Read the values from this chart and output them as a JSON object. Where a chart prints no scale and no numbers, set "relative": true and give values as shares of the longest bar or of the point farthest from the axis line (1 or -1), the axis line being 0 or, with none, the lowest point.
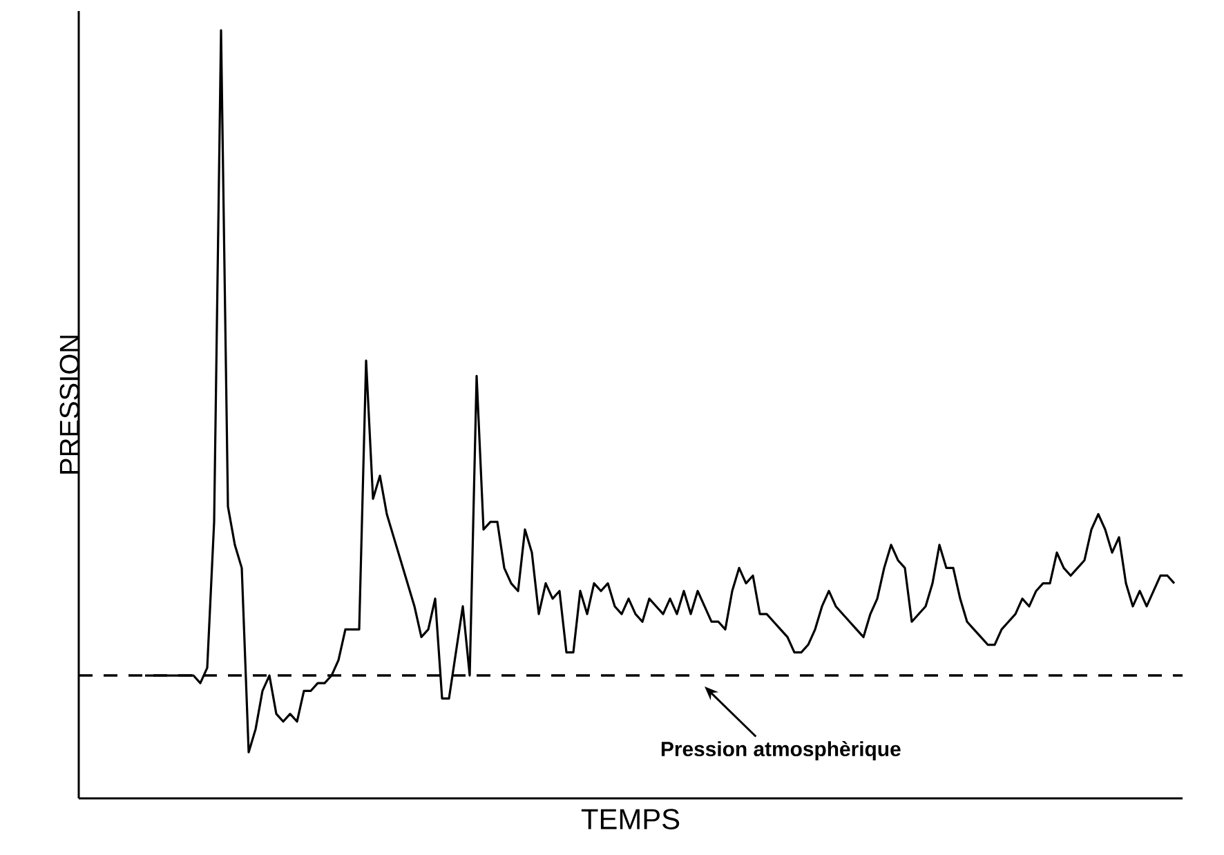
{
  "chart_data": {
    "type": "line",
    "relative": true,
    "xlabel": "TEMPS",
    "ylabel": "PRESSION",
    "categories": [
      null,
      null,
      null,
      null,
      null,
      null,
      null,
      null,
      null,
      null,
      null,
      null,
      null,
      null,
      null,
      null,
      null,
      null,
      null,
      null,
      null,
      null,
      null,
      null,
      null,
      null,
      null,
      null,
      null,
      null,
      null,
      null,
      null,
      null,
      null,
      null,
      null,
      null,
      null,
      null,
      null,
      null,
      null,
      null,
      null,
      null,
      null,
      null,
      null,
      null,
      null,
      null,
      null,
      null,
      null,
      null,
      null,
      null,
      null,
      null,
      null,
      null,
      null,
      null,
      null,
      null,
      null,
      null,
      null,
      null,
      null,
      null,
      null,
      null,
      null,
      null,
      null,
      null,
      null,
      null,
      null,
      null,
      null,
      null,
      null,
      null,
      null,
      null,
      null,
      null,
      null,
      null,
      null,
      null,
      null,
      null,
      null,
      null,
      null,
      null,
      null,
      null,
      null,
      null,
      null,
      null,
      null,
      null,
      null,
      null,
      null,
      null,
      null,
      null,
      null,
      null,
      null,
      null,
      null,
      null,
      null,
      null,
      null,
      null,
      null,
      null,
      null,
      null,
      null,
      null,
      null,
      null,
      null,
      null,
      null,
      null,
      null,
      null,
      null,
      null,
      null,
      null,
      null,
      null,
      null,
      null,
      null,
      null,
      null,
      null
    ],
    "series": [
      {
        "color": "#000000",
        "values": [
          0.16,
          0.16,
          0.16,
          0.16,
          0.16,
          0.16,
          0.16,
          0.16,
          0.15,
          0.17,
          0.36,
          1.0,
          0.38,
          0.33,
          0.3,
          0.06,
          0.09,
          0.14,
          0.16,
          0.11,
          0.1,
          0.11,
          0.1,
          0.14,
          0.14,
          0.15,
          0.15,
          0.16,
          0.18,
          0.22,
          0.22,
          0.22,
          0.57,
          0.39,
          0.42,
          0.37,
          0.34,
          0.31,
          0.28,
          0.25,
          0.21,
          0.22,
          0.26,
          0.13,
          0.13,
          0.19,
          0.25,
          0.16,
          0.55,
          0.35,
          0.36,
          0.36,
          0.3,
          0.28,
          0.27,
          0.35,
          0.32,
          0.24,
          0.28,
          0.26,
          0.27,
          0.19,
          0.19,
          0.27,
          0.24,
          0.28,
          0.27,
          0.28,
          0.25,
          0.24,
          0.26,
          0.24,
          0.23,
          0.26,
          0.25,
          0.24,
          0.26,
          0.24,
          0.27,
          0.24,
          0.27,
          0.25,
          0.23,
          0.23,
          0.22,
          0.27,
          0.3,
          0.28,
          0.29,
          0.24,
          0.24,
          0.23,
          0.22,
          0.21,
          0.19,
          0.19,
          0.2,
          0.22,
          0.25,
          0.27,
          0.25,
          0.24,
          0.23,
          0.22,
          0.21,
          0.24,
          0.26,
          0.3,
          0.33,
          0.31,
          0.3,
          0.23,
          0.24,
          0.25,
          0.28,
          0.33,
          0.3,
          0.3,
          0.26,
          0.23,
          0.22,
          0.21,
          0.2,
          0.2,
          0.22,
          0.23,
          0.24,
          0.26,
          0.25,
          0.27,
          0.28,
          0.28,
          0.32,
          0.3,
          0.29,
          0.3,
          0.31,
          0.35,
          0.37,
          0.35,
          0.32,
          0.34,
          0.28,
          0.25,
          0.27,
          0.25,
          0.27,
          0.29,
          0.29,
          0.28
        ]
      }
    ],
    "ref_lines": [
      {
        "axis": "y",
        "value": 0.16,
        "label": "Pression atmosphèrique",
        "color": "#000000",
        "line_style": "dashed"
      }
    ],
    "marker": "none",
    "line_style": "solid"
  }
}
